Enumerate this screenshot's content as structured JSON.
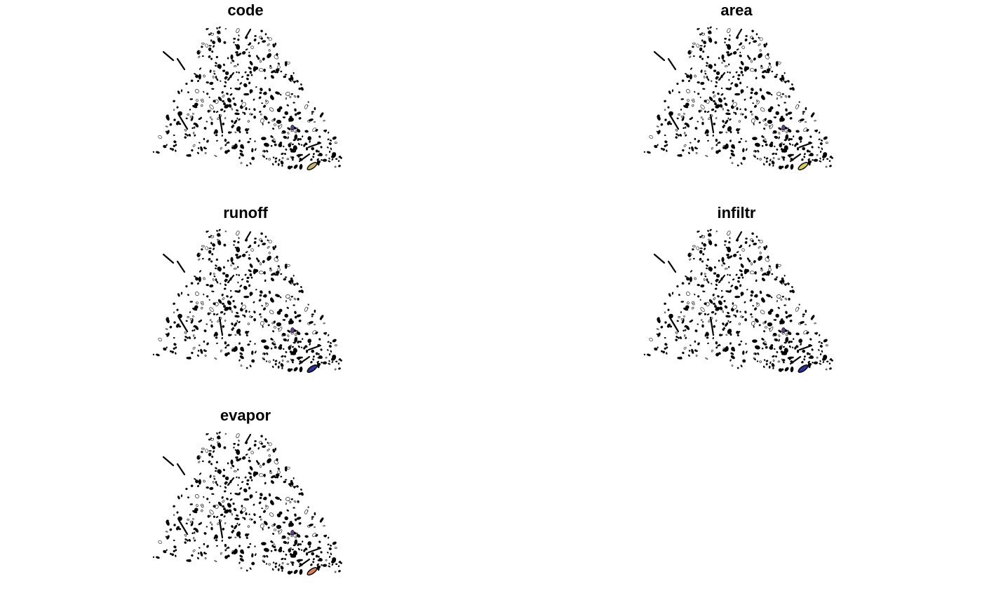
{
  "figure": {
    "panels": [
      {
        "id": "code",
        "title": "code",
        "highlight_color": "#c9b76a"
      },
      {
        "id": "area",
        "title": "area",
        "highlight_color": "#d8cf5a"
      },
      {
        "id": "runoff",
        "title": "runoff",
        "highlight_color": "#2f2f9a"
      },
      {
        "id": "infiltr",
        "title": "infiltr",
        "highlight_color": "#2f2f9a"
      },
      {
        "id": "evapor",
        "title": "evapor",
        "highlight_color": "#d9825a"
      }
    ]
  },
  "colors": {
    "background": "#ffffff",
    "polygon_fill": "#000000",
    "polygon_outline": "#000000",
    "secondary_feature": "#5a3f8f"
  }
}
